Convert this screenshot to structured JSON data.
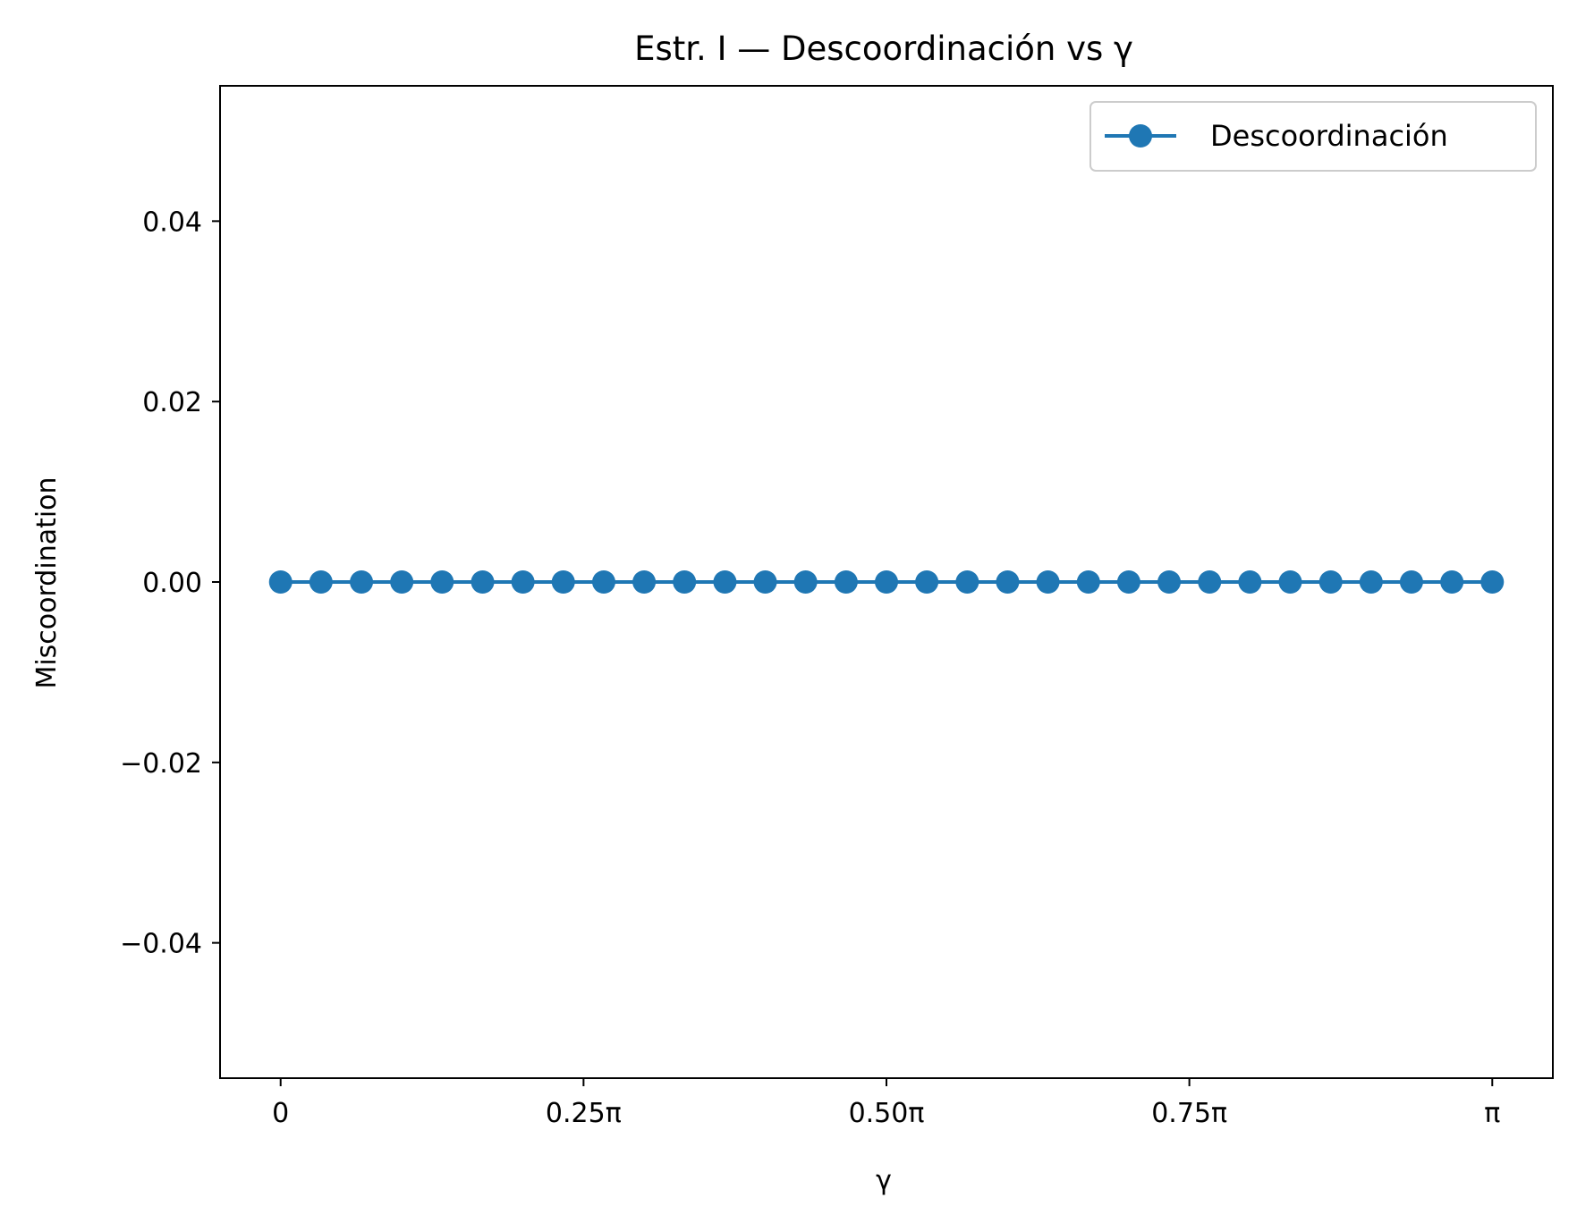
{
  "chart_data": {
    "type": "line",
    "title": "Estr. I — Descoordinación vs γ",
    "xlabel": "γ",
    "ylabel": "Miscoordination",
    "x_scale_note": "x in units of π",
    "xlim": [
      -0.05,
      1.05
    ],
    "ylim": [
      -0.055,
      0.055
    ],
    "x_ticks": [
      0,
      0.25,
      0.5,
      0.75,
      1.0
    ],
    "x_tick_labels": [
      "0",
      "0.25π",
      "0.50π",
      "0.75π",
      "π"
    ],
    "y_ticks": [
      0.04,
      0.02,
      0.0,
      -0.02,
      -0.04
    ],
    "y_tick_labels": [
      "0.04",
      "0.02",
      "0.00",
      "−0.02",
      "−0.04"
    ],
    "grid": false,
    "legend_position": "top-right",
    "series": [
      {
        "name": "Descoordinación",
        "color": "#1f77b4",
        "marker": "circle",
        "x": [
          0,
          0.0333,
          0.0667,
          0.1,
          0.1333,
          0.1667,
          0.2,
          0.2333,
          0.2667,
          0.3,
          0.3333,
          0.3667,
          0.4,
          0.4333,
          0.4667,
          0.5,
          0.5333,
          0.5667,
          0.6,
          0.6333,
          0.6667,
          0.7,
          0.7333,
          0.7667,
          0.8,
          0.8333,
          0.8667,
          0.9,
          0.9333,
          0.9667,
          1.0
        ],
        "values": [
          0,
          0,
          0,
          0,
          0,
          0,
          0,
          0,
          0,
          0,
          0,
          0,
          0,
          0,
          0,
          0,
          0,
          0,
          0,
          0,
          0,
          0,
          0,
          0,
          0,
          0,
          0,
          0,
          0,
          0,
          0
        ]
      }
    ]
  }
}
